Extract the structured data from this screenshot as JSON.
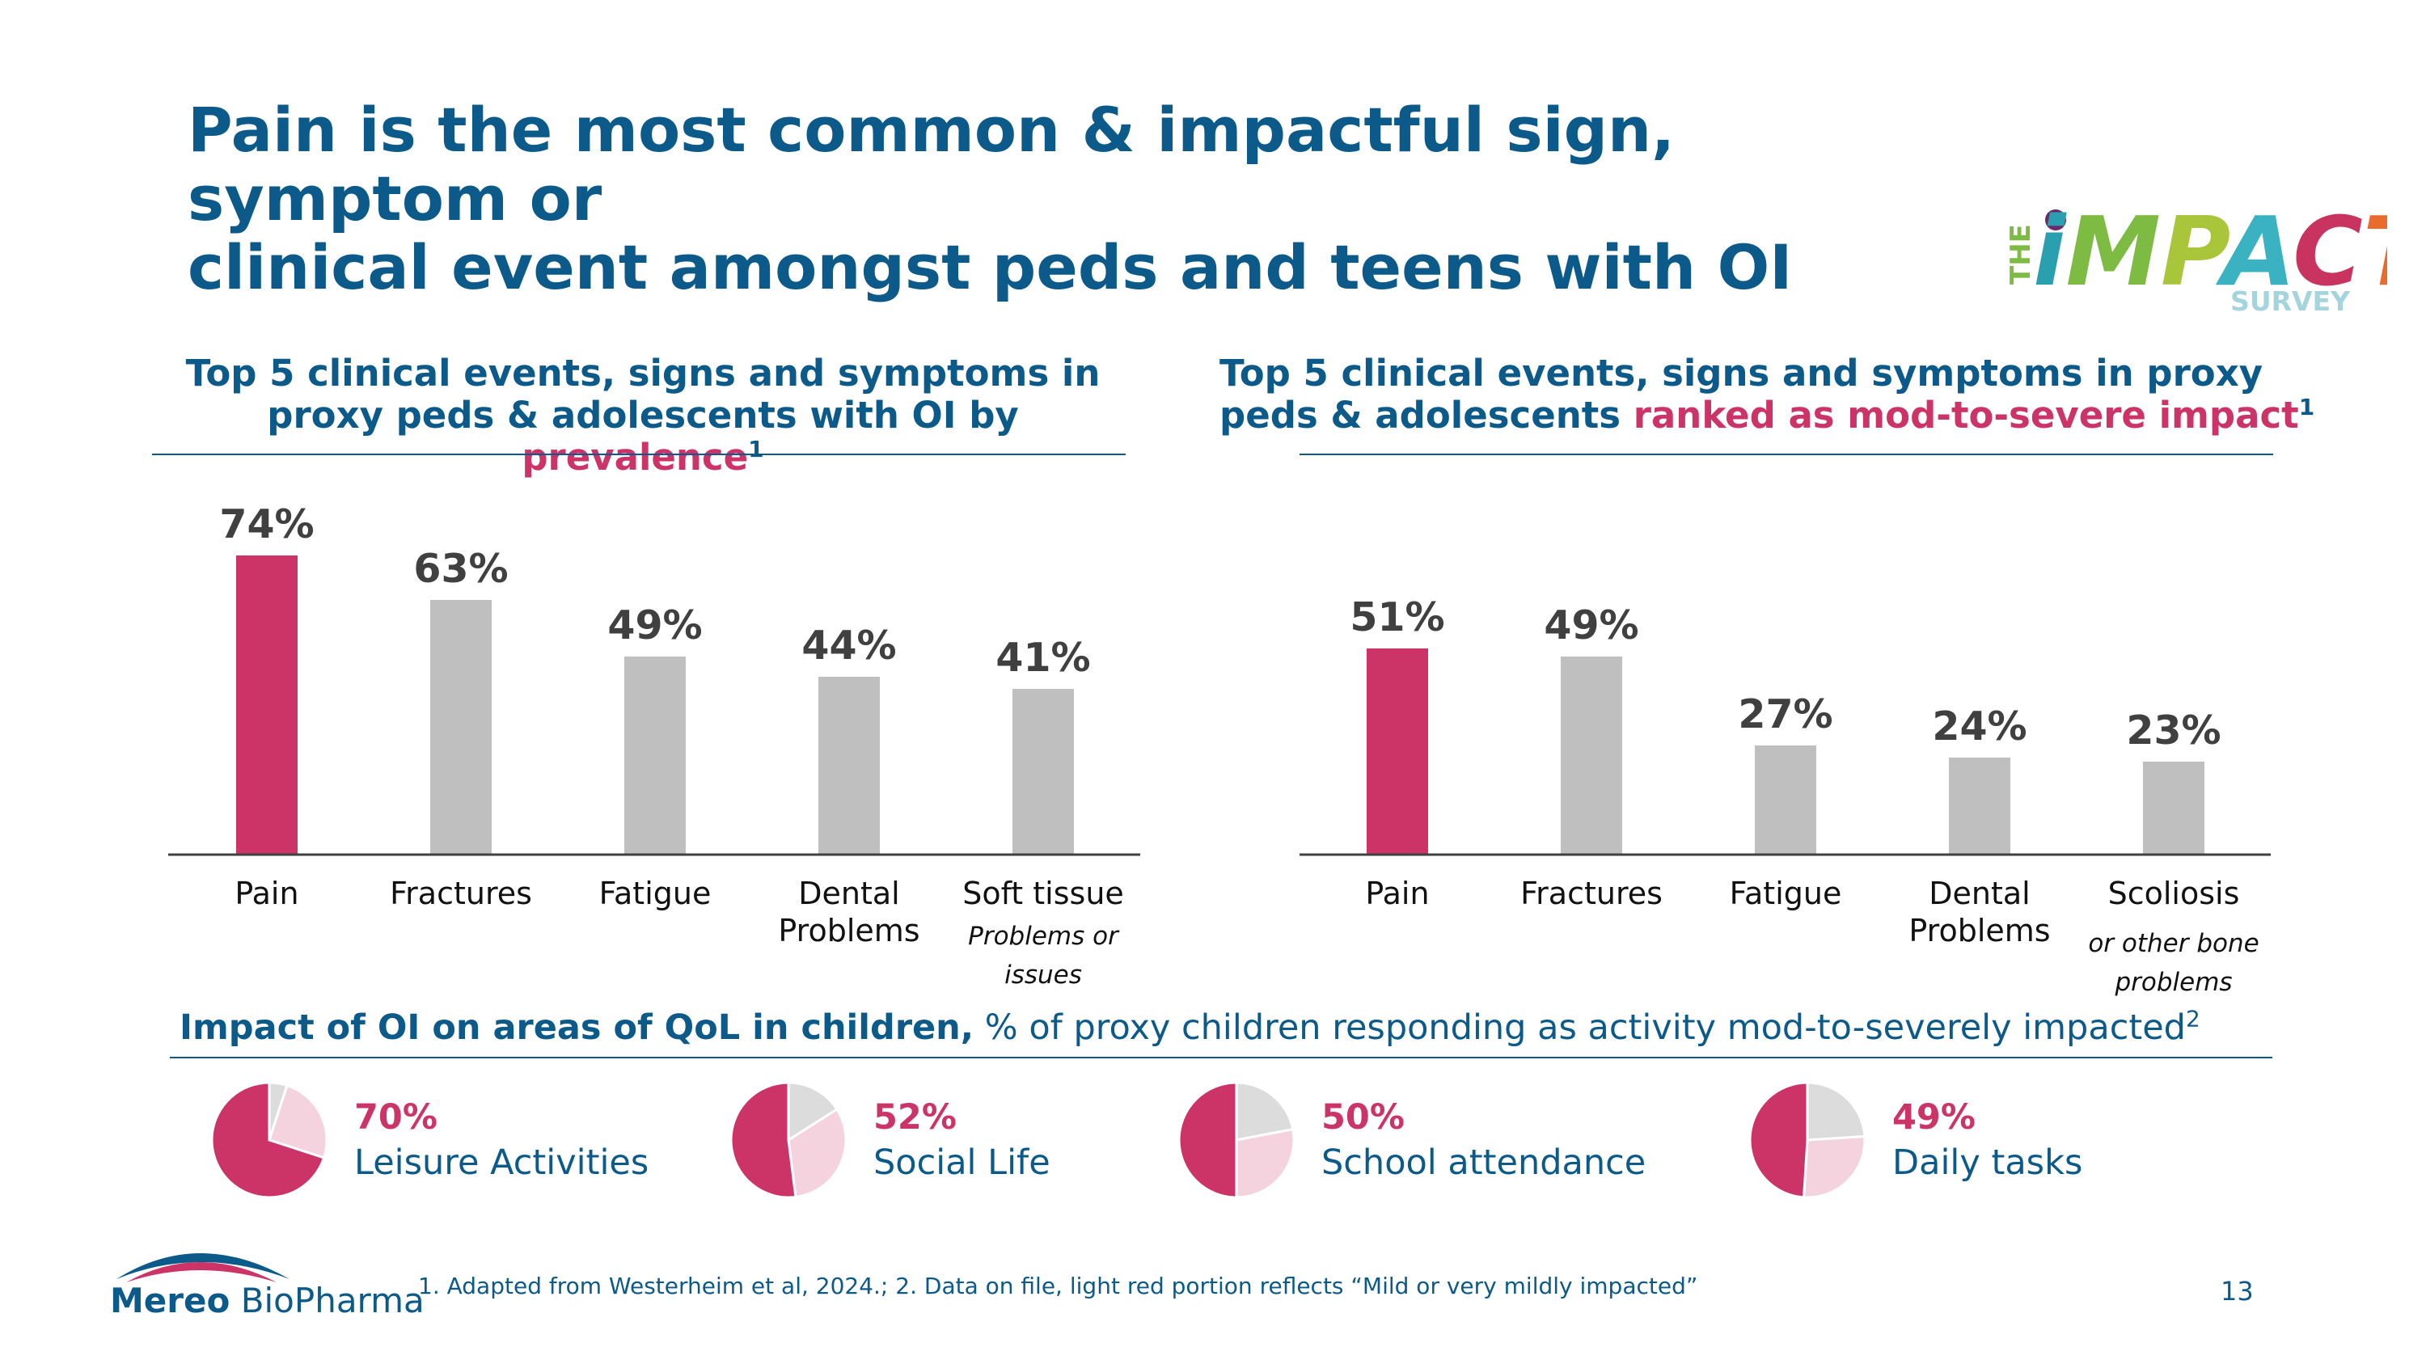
{
  "title": {
    "line1": "Pain is the most common & impactful sign, symptom or",
    "line2": "clinical event amongst peds and teens with OI"
  },
  "logo": {
    "the": "THE",
    "letters": [
      "i",
      "M",
      "P",
      "A",
      "C",
      "T"
    ],
    "survey": "SURVEY",
    "colors": {
      "i": "#2a9fb0",
      "dot": "#6b2a6a",
      "M": "#7dbb42",
      "P": "#a9c63a",
      "A": "#3bb2c2",
      "C": "#c8335f",
      "T": "#ea6c2c",
      "the": "#7dbb42",
      "survey": "#a4d4dc"
    }
  },
  "left_subtitle": {
    "text1": "Top 5 clinical events, signs and symptoms in",
    "text2a": "proxy peds & adolescents with OI by ",
    "text2b": "prevalence",
    "sup": "1"
  },
  "right_subtitle": {
    "text1": "Top 5 clinical events, signs and symptoms in proxy",
    "text2a": "peds & adolescents ",
    "text2b": "ranked as mod-to-severe impact",
    "sup": "1"
  },
  "chart_data": [
    {
      "type": "bar",
      "title": "Top 5 clinical events, signs and symptoms in proxy peds & adolescents with OI by prevalence",
      "categories": [
        "Pain",
        "Fractures",
        "Fatigue",
        "Dental Problems",
        "Soft tissue Problems or issues"
      ],
      "category_lines": [
        [
          "Pain"
        ],
        [
          "Fractures"
        ],
        [
          "Fatigue"
        ],
        [
          "Dental",
          "Problems"
        ],
        [
          "Soft tissue"
        ]
      ],
      "category_notes": [
        [],
        [],
        [],
        [],
        [
          "Problems or",
          "issues"
        ]
      ],
      "values": [
        74,
        63,
        49,
        44,
        41
      ],
      "value_labels": [
        "74%",
        "63%",
        "49%",
        "44%",
        "41%"
      ],
      "ylim": [
        0,
        100
      ],
      "highlight_index": 0,
      "colors": {
        "highlight": "#cc3366",
        "default": "#bfbfbf"
      }
    },
    {
      "type": "bar",
      "title": "Top 5 clinical events, signs and symptoms in proxy peds & adolescents ranked as mod-to-severe impact",
      "categories": [
        "Pain",
        "Fractures",
        "Fatigue",
        "Dental Problems",
        "Scoliosis or other bone problems"
      ],
      "category_lines": [
        [
          "Pain"
        ],
        [
          "Fractures"
        ],
        [
          "Fatigue"
        ],
        [
          "Dental",
          "Problems"
        ],
        [
          "Scoliosis"
        ]
      ],
      "category_notes": [
        [],
        [],
        [],
        [],
        [
          "or other bone",
          "problems"
        ]
      ],
      "values": [
        51,
        49,
        27,
        24,
        23
      ],
      "value_labels": [
        "51%",
        "49%",
        "27%",
        "24%",
        "23%"
      ],
      "ylim": [
        0,
        100
      ],
      "highlight_index": 0,
      "colors": {
        "highlight": "#cc3366",
        "default": "#bfbfbf"
      }
    },
    {
      "type": "pie",
      "title": "Impact of OI on areas of QoL in children, % of proxy children responding as activity mod-to-severely impacted",
      "series": [
        {
          "name": "Leisure Activities",
          "label": "70%",
          "values": [
            70,
            25,
            5
          ]
        },
        {
          "name": "Social Life",
          "label": "52%",
          "values": [
            52,
            32,
            16
          ]
        },
        {
          "name": "School attendance",
          "label": "50%",
          "values": [
            50,
            28,
            22
          ]
        },
        {
          "name": "Daily tasks",
          "label": "49%",
          "values": [
            49,
            27,
            24
          ]
        }
      ],
      "slice_colors": [
        "#cc3366",
        "#f5d3de",
        "#dcdcdc"
      ]
    }
  ],
  "qol": {
    "bold": "Impact of OI on areas of QoL in children,",
    "rest": " % of proxy children responding as activity mod-to-severely impacted",
    "sup": "2"
  },
  "footnote": "1. Adapted from Westerheim et al, 2024.; 2. Data on file, light red portion reflects “Mild or very mildly impacted”",
  "page_number": "13",
  "brand": {
    "bold": "Mereo",
    "rest": " BioPharma",
    "colors": {
      "arc1": "#0b5a8a",
      "arc2": "#cc3366"
    }
  }
}
